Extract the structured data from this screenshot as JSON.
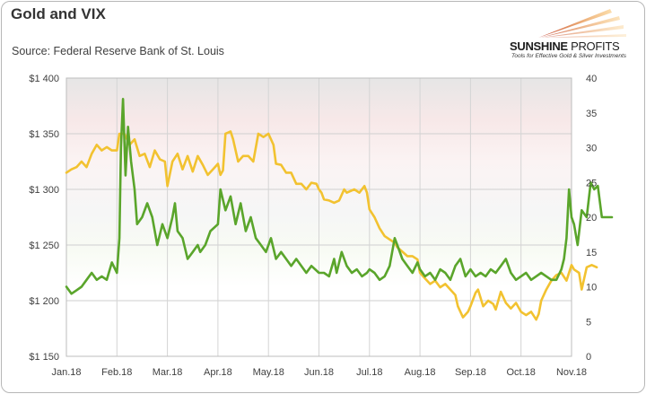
{
  "header": {
    "title": "Gold and VIX",
    "subtitle": "Source: Federal Reserve Bank of St. Louis"
  },
  "logo": {
    "brand_part1": "SUNSHINE",
    "brand_part2": "PROFITS",
    "tagline": "Tools for Effective Gold & Silver Investments",
    "brand_color": "#c0392b"
  },
  "chart_data": {
    "type": "line",
    "title": "Gold and VIX",
    "x_ticks": [
      "Jan.18",
      "Feb.18",
      "Mar.18",
      "Apr.18",
      "May.18",
      "Jun.18",
      "Jul.18",
      "Aug.18",
      "Sep.18",
      "Oct.18",
      "Nov.18"
    ],
    "left_axis": {
      "ylim": [
        1150,
        1400
      ],
      "ticks": [
        "$1 150",
        "$1 200",
        "$1 250",
        "$1 300",
        "$1 350",
        "$1 400"
      ]
    },
    "right_axis": {
      "ylim": [
        0,
        40
      ],
      "ticks": [
        "0",
        "5",
        "10",
        "15",
        "20",
        "25",
        "30",
        "35",
        "40"
      ]
    },
    "grid": true,
    "series": [
      {
        "axis": "left",
        "color": "#f2c230",
        "points": [
          [
            0.0,
            1315
          ],
          [
            0.1,
            1318
          ],
          [
            0.2,
            1320
          ],
          [
            0.3,
            1325
          ],
          [
            0.4,
            1320
          ],
          [
            0.5,
            1332
          ],
          [
            0.6,
            1340
          ],
          [
            0.7,
            1335
          ],
          [
            0.8,
            1338
          ],
          [
            0.9,
            1335
          ],
          [
            1.0,
            1335
          ],
          [
            1.05,
            1350
          ],
          [
            1.15,
            1350
          ],
          [
            1.25,
            1340
          ],
          [
            1.35,
            1345
          ],
          [
            1.45,
            1330
          ],
          [
            1.55,
            1332
          ],
          [
            1.65,
            1320
          ],
          [
            1.75,
            1335
          ],
          [
            1.85,
            1327
          ],
          [
            1.95,
            1325
          ],
          [
            2.0,
            1303
          ],
          [
            2.1,
            1325
          ],
          [
            2.2,
            1332
          ],
          [
            2.3,
            1318
          ],
          [
            2.4,
            1330
          ],
          [
            2.5,
            1316
          ],
          [
            2.6,
            1330
          ],
          [
            2.7,
            1322
          ],
          [
            2.8,
            1313
          ],
          [
            2.9,
            1318
          ],
          [
            3.0,
            1323
          ],
          [
            3.05,
            1313
          ],
          [
            3.1,
            1317
          ],
          [
            3.15,
            1350
          ],
          [
            3.25,
            1352
          ],
          [
            3.3,
            1345
          ],
          [
            3.4,
            1325
          ],
          [
            3.5,
            1330
          ],
          [
            3.6,
            1330
          ],
          [
            3.7,
            1325
          ],
          [
            3.8,
            1350
          ],
          [
            3.9,
            1347
          ],
          [
            4.0,
            1350
          ],
          [
            4.1,
            1340
          ],
          [
            4.15,
            1323
          ],
          [
            4.25,
            1322
          ],
          [
            4.35,
            1315
          ],
          [
            4.45,
            1315
          ],
          [
            4.55,
            1305
          ],
          [
            4.65,
            1305
          ],
          [
            4.75,
            1300
          ],
          [
            4.85,
            1306
          ],
          [
            4.95,
            1305
          ],
          [
            5.0,
            1300
          ],
          [
            5.05,
            1297
          ],
          [
            5.1,
            1291
          ],
          [
            5.2,
            1290
          ],
          [
            5.3,
            1288
          ],
          [
            5.4,
            1290
          ],
          [
            5.5,
            1300
          ],
          [
            5.55,
            1297
          ],
          [
            5.7,
            1300
          ],
          [
            5.8,
            1297
          ],
          [
            5.9,
            1303
          ],
          [
            5.95,
            1297
          ],
          [
            6.0,
            1282
          ],
          [
            6.1,
            1275
          ],
          [
            6.2,
            1265
          ],
          [
            6.3,
            1258
          ],
          [
            6.4,
            1255
          ],
          [
            6.5,
            1252
          ],
          [
            6.55,
            1248
          ],
          [
            6.65,
            1244
          ],
          [
            6.75,
            1240
          ],
          [
            6.85,
            1240
          ],
          [
            6.95,
            1237
          ],
          [
            7.0,
            1225
          ],
          [
            7.1,
            1220
          ],
          [
            7.2,
            1215
          ],
          [
            7.3,
            1218
          ],
          [
            7.4,
            1212
          ],
          [
            7.5,
            1215
          ],
          [
            7.6,
            1210
          ],
          [
            7.7,
            1205
          ],
          [
            7.75,
            1195
          ],
          [
            7.85,
            1185
          ],
          [
            7.95,
            1190
          ],
          [
            8.0,
            1195
          ],
          [
            8.1,
            1207
          ],
          [
            8.15,
            1210
          ],
          [
            8.25,
            1195
          ],
          [
            8.35,
            1200
          ],
          [
            8.45,
            1197
          ],
          [
            8.5,
            1192
          ],
          [
            8.6,
            1208
          ],
          [
            8.7,
            1198
          ],
          [
            8.8,
            1193
          ],
          [
            8.9,
            1198
          ],
          [
            9.0,
            1190
          ],
          [
            9.1,
            1187
          ],
          [
            9.2,
            1190
          ],
          [
            9.3,
            1183
          ],
          [
            9.35,
            1188
          ],
          [
            9.4,
            1200
          ],
          [
            9.5,
            1210
          ],
          [
            9.6,
            1218
          ],
          [
            9.7,
            1223
          ],
          [
            9.8,
            1225
          ],
          [
            9.9,
            1218
          ],
          [
            10.0,
            1232
          ],
          [
            10.05,
            1228
          ],
          [
            10.15,
            1225
          ],
          [
            10.2,
            1210
          ],
          [
            10.3,
            1230
          ],
          [
            10.4,
            1232
          ],
          [
            10.5,
            1230
          ]
        ]
      },
      {
        "axis": "right",
        "color": "#5aa52b",
        "points": [
          [
            0.0,
            10
          ],
          [
            0.1,
            9
          ],
          [
            0.2,
            9.5
          ],
          [
            0.3,
            10
          ],
          [
            0.4,
            11
          ],
          [
            0.5,
            12
          ],
          [
            0.6,
            11
          ],
          [
            0.7,
            11.5
          ],
          [
            0.8,
            11
          ],
          [
            0.9,
            13.5
          ],
          [
            1.0,
            12
          ],
          [
            1.05,
            17
          ],
          [
            1.08,
            30
          ],
          [
            1.12,
            37
          ],
          [
            1.17,
            26
          ],
          [
            1.22,
            33
          ],
          [
            1.28,
            28
          ],
          [
            1.35,
            24
          ],
          [
            1.4,
            19
          ],
          [
            1.5,
            20
          ],
          [
            1.6,
            22
          ],
          [
            1.7,
            20
          ],
          [
            1.8,
            16
          ],
          [
            1.9,
            19
          ],
          [
            2.0,
            17
          ],
          [
            2.1,
            20
          ],
          [
            2.15,
            22
          ],
          [
            2.2,
            18
          ],
          [
            2.3,
            17
          ],
          [
            2.4,
            14
          ],
          [
            2.5,
            15
          ],
          [
            2.6,
            16
          ],
          [
            2.65,
            15
          ],
          [
            2.75,
            16
          ],
          [
            2.85,
            18
          ],
          [
            3.0,
            19
          ],
          [
            3.05,
            24
          ],
          [
            3.15,
            21
          ],
          [
            3.25,
            23
          ],
          [
            3.35,
            19
          ],
          [
            3.45,
            22
          ],
          [
            3.55,
            18
          ],
          [
            3.65,
            20
          ],
          [
            3.75,
            17
          ],
          [
            3.85,
            16
          ],
          [
            3.95,
            15
          ],
          [
            4.05,
            17
          ],
          [
            4.15,
            14
          ],
          [
            4.25,
            15
          ],
          [
            4.35,
            14
          ],
          [
            4.45,
            13
          ],
          [
            4.55,
            14
          ],
          [
            4.65,
            13
          ],
          [
            4.75,
            12
          ],
          [
            4.85,
            13
          ],
          [
            5.0,
            12
          ],
          [
            5.1,
            12
          ],
          [
            5.2,
            11.5
          ],
          [
            5.3,
            14
          ],
          [
            5.35,
            12
          ],
          [
            5.45,
            15
          ],
          [
            5.55,
            13
          ],
          [
            5.65,
            12
          ],
          [
            5.75,
            12.5
          ],
          [
            5.85,
            11.5
          ],
          [
            5.95,
            12
          ],
          [
            6.0,
            12.5
          ],
          [
            6.1,
            12
          ],
          [
            6.2,
            11
          ],
          [
            6.3,
            11.5
          ],
          [
            6.4,
            13
          ],
          [
            6.5,
            17
          ],
          [
            6.55,
            16
          ],
          [
            6.65,
            14
          ],
          [
            6.75,
            13
          ],
          [
            6.85,
            12
          ],
          [
            6.95,
            13.5
          ],
          [
            7.0,
            12.5
          ],
          [
            7.1,
            11.5
          ],
          [
            7.2,
            12
          ],
          [
            7.3,
            11
          ],
          [
            7.4,
            12.5
          ],
          [
            7.5,
            12
          ],
          [
            7.6,
            11
          ],
          [
            7.7,
            13
          ],
          [
            7.8,
            14
          ],
          [
            7.9,
            11.5
          ],
          [
            8.0,
            12.5
          ],
          [
            8.1,
            11.5
          ],
          [
            8.2,
            12
          ],
          [
            8.3,
            11.5
          ],
          [
            8.4,
            12.5
          ],
          [
            8.5,
            12
          ],
          [
            8.6,
            13
          ],
          [
            8.7,
            14
          ],
          [
            8.8,
            12
          ],
          [
            8.9,
            11
          ],
          [
            9.0,
            11.5
          ],
          [
            9.1,
            12
          ],
          [
            9.2,
            11
          ],
          [
            9.3,
            11.5
          ],
          [
            9.4,
            12
          ],
          [
            9.5,
            11.5
          ],
          [
            9.6,
            11
          ],
          [
            9.7,
            11
          ],
          [
            9.8,
            12.5
          ],
          [
            9.85,
            14
          ],
          [
            9.9,
            17
          ],
          [
            9.95,
            24
          ],
          [
            10.0,
            20
          ],
          [
            10.05,
            19
          ],
          [
            10.12,
            16
          ],
          [
            10.2,
            21
          ],
          [
            10.3,
            20
          ],
          [
            10.38,
            25
          ],
          [
            10.45,
            24
          ],
          [
            10.52,
            24.5
          ],
          [
            10.6,
            20
          ],
          [
            10.7,
            20
          ],
          [
            10.8,
            20
          ]
        ]
      }
    ]
  }
}
